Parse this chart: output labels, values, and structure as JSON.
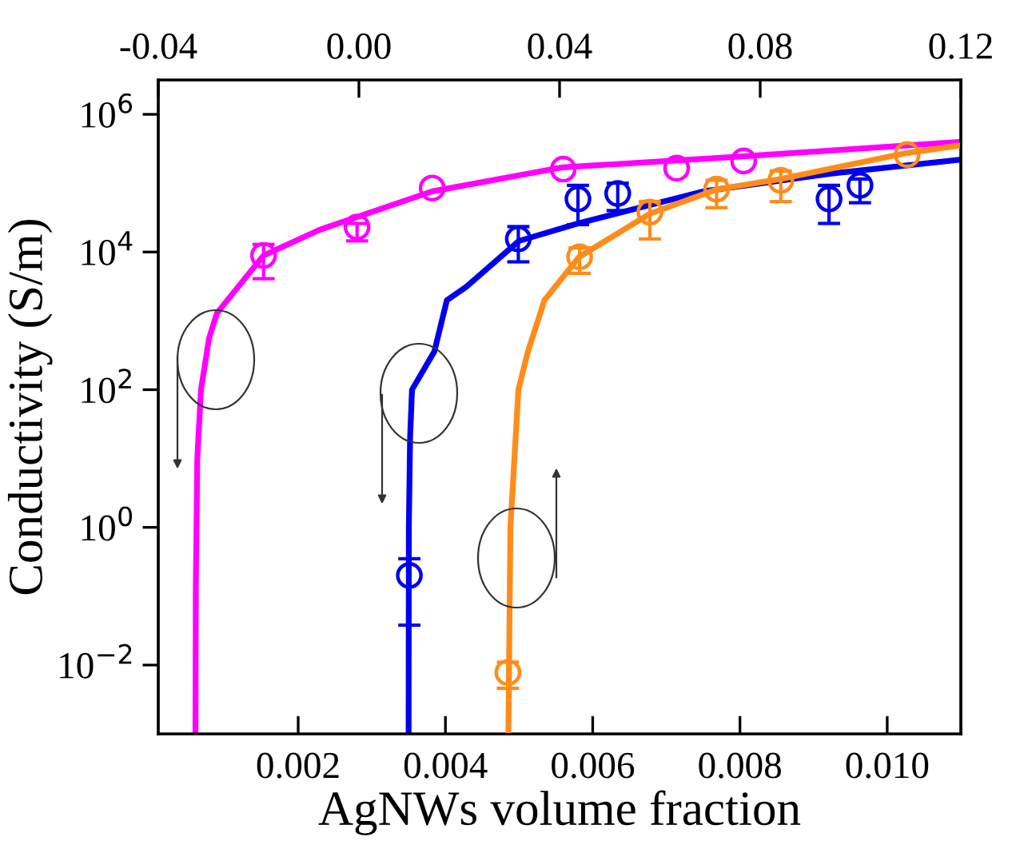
{
  "chart_data": {
    "type": "scatter",
    "xlabel": "AgNWs volume fraction",
    "ylabel": "Conductivity (S/m)",
    "log": "y",
    "xlim": [
      0.0001,
      0.011
    ],
    "xticks": [
      0.002,
      0.004,
      0.006,
      0.008,
      {
        "value": 0.01,
        "label": "0.010"
      }
    ],
    "x2lim": [
      -0.04,
      0.12
    ],
    "x2ticks": [
      {
        "value": -0.04,
        "label": "-0.04"
      },
      {
        "value": 0.0,
        "label": "0.00"
      },
      {
        "value": 0.04,
        "label": "0.04"
      },
      {
        "value": 0.08,
        "label": "0.08"
      },
      {
        "value": 0.12,
        "label": "0.12"
      }
    ],
    "ylim": [
      0.001,
      3160000
    ],
    "yticks": [
      {
        "value": 0.01,
        "label": "10$^{−2}$"
      },
      {
        "value": 1,
        "label": "10$^{0}$"
      },
      {
        "value": 100,
        "label": "10$^{2}$"
      },
      {
        "value": 10000,
        "label": "10$^{4}$"
      },
      {
        "value": 1000000,
        "label": "10$^{6}$"
      }
    ],
    "grid": false,
    "legend": false,
    "series": [
      {
        "color": "#ff00ff",
        "marker": "circle",
        "x": [
          0.00153,
          0.0028,
          0.00382,
          0.0056,
          0.00714,
          0.00805
        ],
        "values": [
          8900,
          23000,
          85000,
          160000,
          165000,
          210000
        ],
        "errors": [
          [
            4100,
            12900
          ],
          [
            14500,
            26000
          ],
          null,
          null,
          null,
          null
        ]
      },
      {
        "type": "line",
        "color": "#ff00ff",
        "x": [
          0.000605,
          0.00061,
          0.00063,
          0.00068,
          0.00079,
          0.000897,
          0.00153,
          0.00229,
          0.00382,
          0.00559,
          0.00804,
          0.011
        ],
        "values": [
          0.001,
          0.14,
          10,
          100,
          560,
          1290,
          8900,
          21000,
          76000,
          170000,
          245000,
          400000
        ]
      },
      {
        "color": "#0000ee",
        "marker": "circle",
        "x": [
          0.00351,
          0.00499,
          0.0058,
          0.00634,
          0.00921,
          0.00963
        ],
        "values": [
          0.2,
          15500,
          59000,
          71000,
          59000,
          93000
        ],
        "errors": [
          [
            0.038,
            0.35
          ],
          [
            7200,
            23400
          ],
          [
            25000,
            93000
          ],
          [
            40000,
            100000
          ],
          [
            26000,
            93000
          ],
          [
            52000,
            115000
          ]
        ]
      },
      {
        "type": "line",
        "color": "#0000ee",
        "x": [
          0.0035,
          0.003503,
          0.00352,
          0.003546,
          0.00385,
          0.00402,
          0.00428,
          0.005,
          0.0058,
          0.0075,
          0.00924,
          0.011
        ],
        "values": [
          0.001,
          1,
          20,
          100,
          360,
          2000,
          3100,
          14500,
          26000,
          76000,
          138000,
          220000
        ]
      },
      {
        "color": "#ff8c1a",
        "marker": "circle",
        "axis": "x2",
        "x": [
          0.0297,
          0.044,
          0.058,
          0.0713,
          0.0841,
          0.1093
        ],
        "values": [
          0.0078,
          8500,
          38000,
          82000,
          110000,
          260000
        ],
        "errors": [
          [
            0.0046,
            0.011
          ],
          [
            4900,
            11500
          ],
          [
            15500,
            54000
          ],
          [
            44000,
            110000
          ],
          [
            54000,
            150000
          ],
          null
        ]
      },
      {
        "type": "line",
        "color": "#ff8c1a",
        "axis": "x2",
        "x": [
          0.0298,
          0.0302,
          0.0318,
          0.0337,
          0.037,
          0.0439,
          0.058,
          0.0713,
          0.0841,
          0.1093,
          0.12
        ],
        "values": [
          0.001,
          1,
          100,
          360,
          2000,
          8500,
          36000,
          81000,
          115000,
          275000,
          355000
        ]
      }
    ]
  }
}
